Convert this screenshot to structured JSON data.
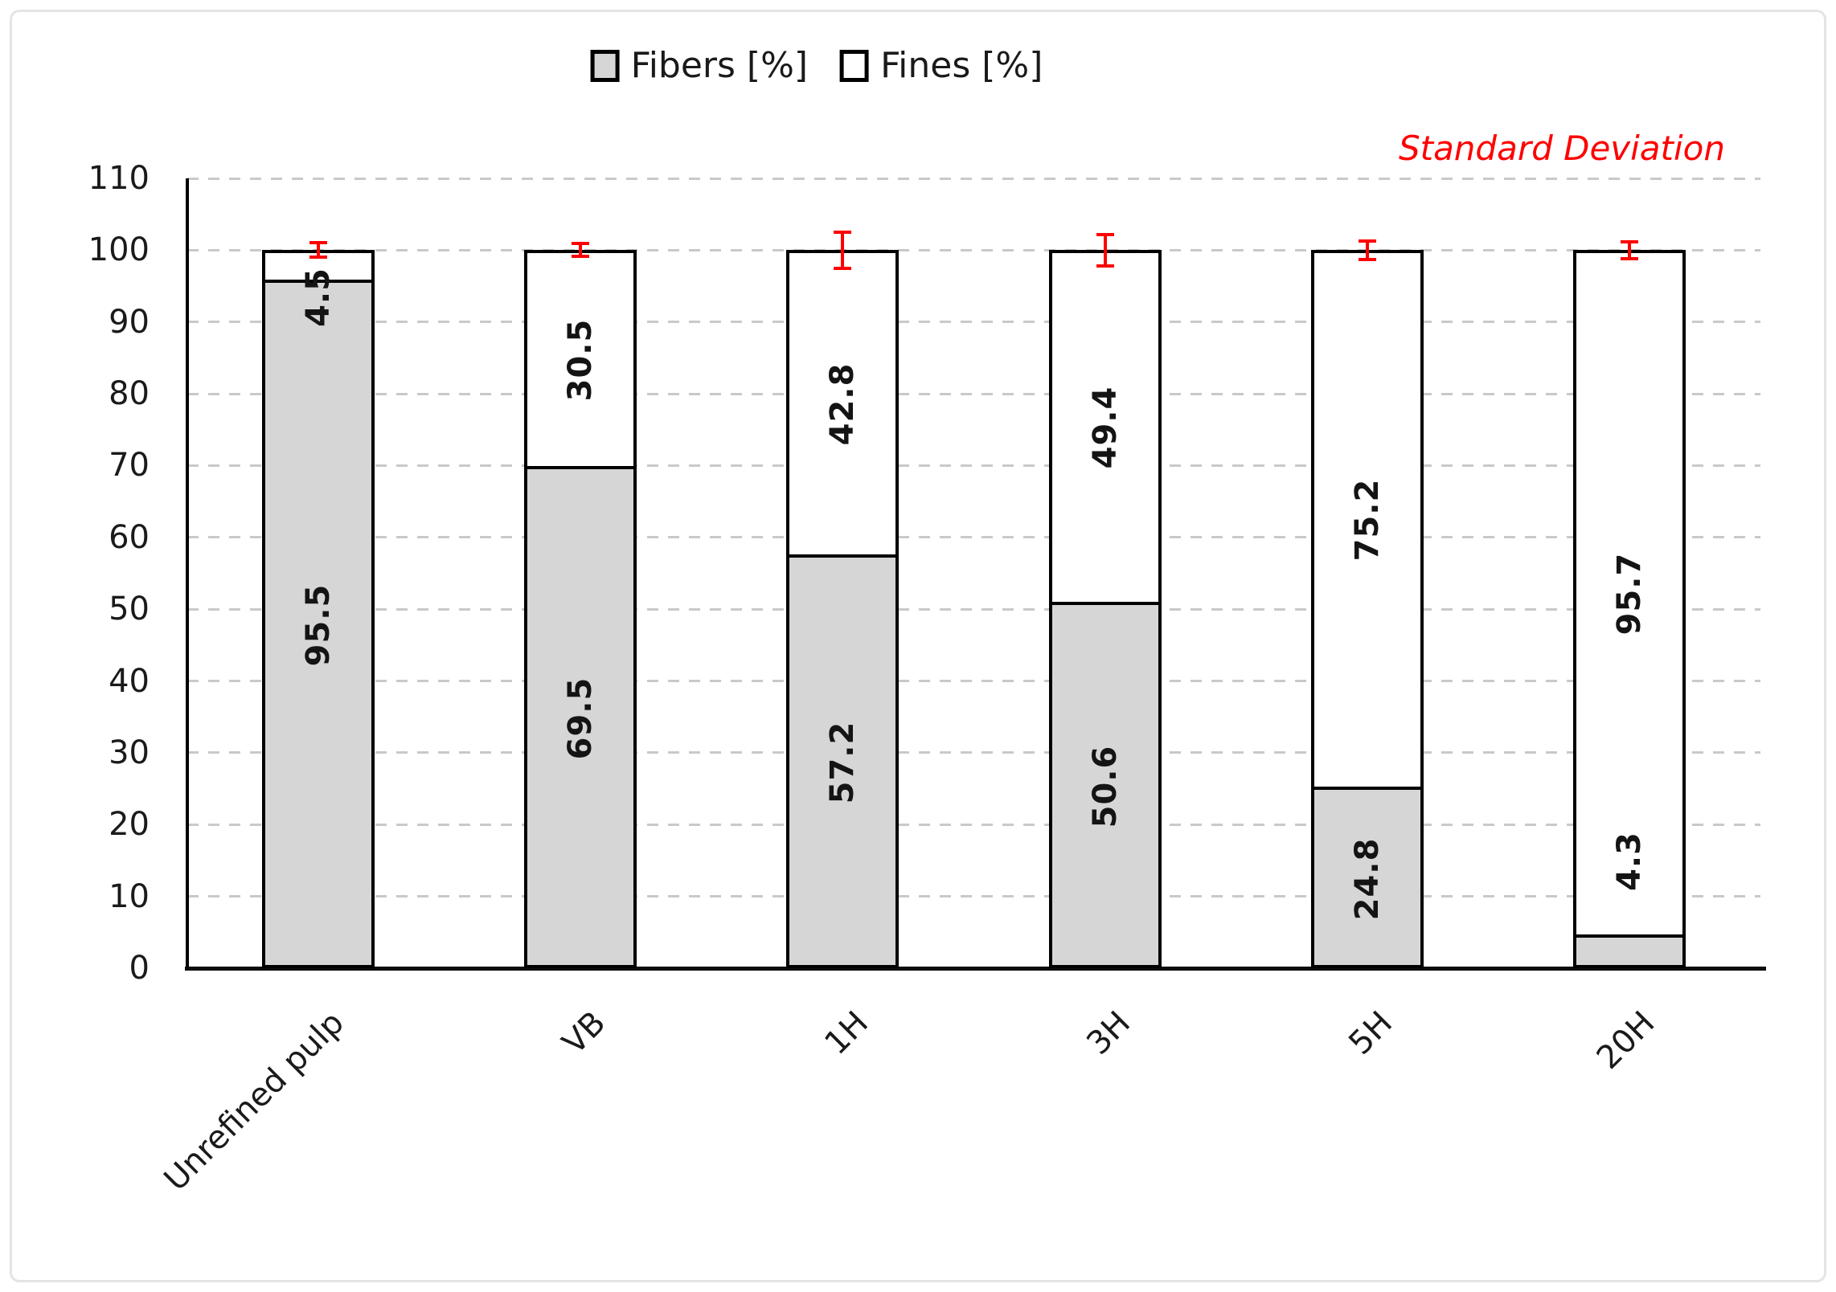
{
  "chart_data": {
    "type": "bar",
    "stacked": true,
    "title": "",
    "categories": [
      "Unrefined pulp",
      "VB",
      "1H",
      "3H",
      "5H",
      "20H"
    ],
    "series": [
      {
        "name": "Fibers [%]",
        "values": [
          95.5,
          69.5,
          57.2,
          50.6,
          24.8,
          4.3
        ],
        "color": "#d6d6d6"
      },
      {
        "name": "Fines [%]",
        "values": [
          4.5,
          30.5,
          42.8,
          49.4,
          75.2,
          95.7
        ],
        "color": "#ffffff"
      }
    ],
    "totals": [
      100,
      100,
      100,
      100,
      100,
      100
    ],
    "error_bars": {
      "center_at_total": 100,
      "values": [
        1.0,
        0.9,
        2.5,
        2.2,
        1.3,
        1.2
      ],
      "color": "#ff0000"
    },
    "annotation": "Standard Deviation",
    "annotation_color": "#ff0000",
    "y_axis": {
      "min": 0,
      "max": 110,
      "step": 10,
      "ticks": [
        0,
        10,
        20,
        30,
        40,
        50,
        60,
        70,
        80,
        90,
        100,
        110
      ]
    },
    "x_axis": {
      "label_rotation_deg": -45
    },
    "grid": {
      "horizontal": true,
      "style": "dashed",
      "color": "#c9c9c9"
    },
    "bar_border_color": "#000000",
    "legend_position": "top-center"
  }
}
